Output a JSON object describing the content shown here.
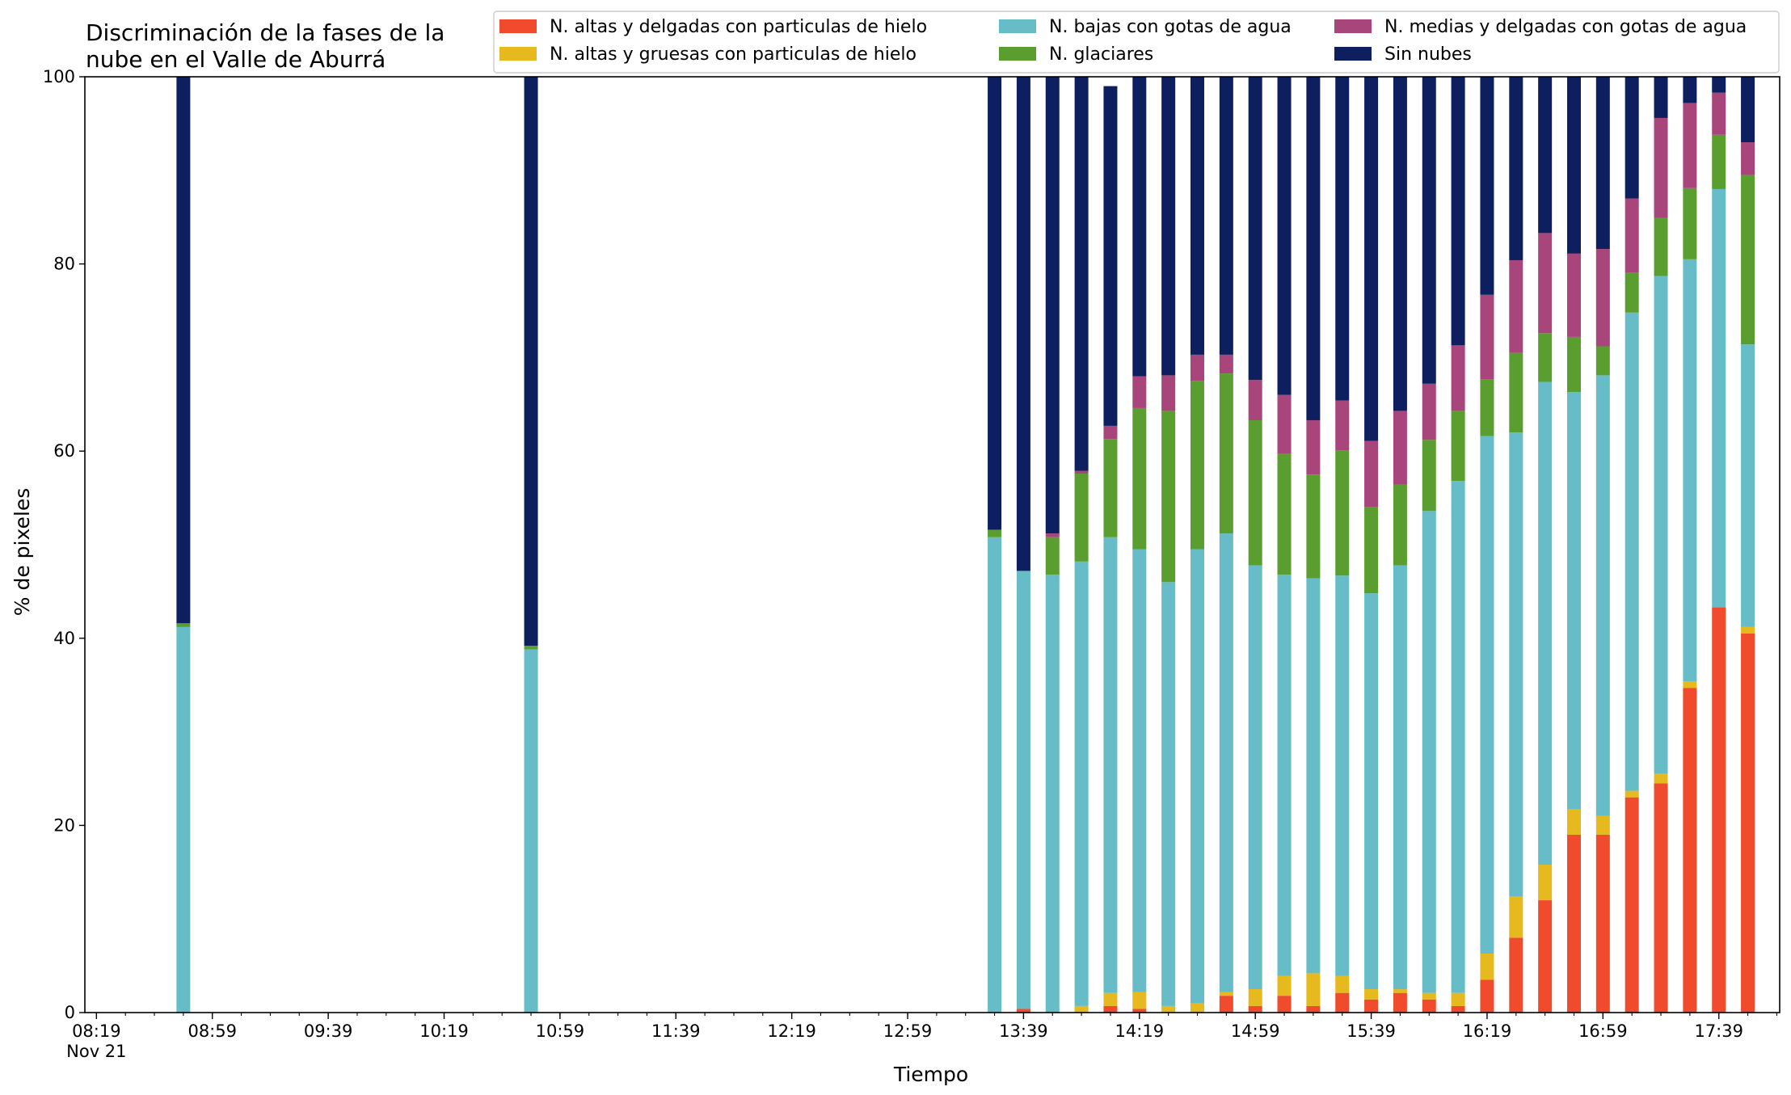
{
  "chart_data": {
    "type": "bar",
    "stacked": true,
    "title": "Discriminación de la fases de la\nnube en el Valle de Aburrá",
    "xlabel": "Tiempo",
    "ylabel": "% de pixeles",
    "ylim": [
      0,
      100
    ],
    "yticks": [
      0,
      20,
      40,
      60,
      80,
      100
    ],
    "xlim": [
      "08:15",
      "18:00"
    ],
    "xticks": [
      "08:19",
      "08:59",
      "09:39",
      "10:19",
      "10:59",
      "11:39",
      "12:19",
      "12:59",
      "13:39",
      "14:19",
      "14:59",
      "15:39",
      "16:19",
      "16:59",
      "17:39"
    ],
    "xtick_sublabel": "Nov 21",
    "minor_tick_interval_minutes": 10,
    "legend": {
      "placement": "top-right",
      "columns": 3
    },
    "categories": [
      "08:49",
      "10:49",
      "13:29",
      "13:39",
      "13:49",
      "13:59",
      "14:09",
      "14:19",
      "14:29",
      "14:39",
      "14:49",
      "14:59",
      "15:09",
      "15:19",
      "15:29",
      "15:39",
      "15:49",
      "15:59",
      "16:09",
      "16:19",
      "16:29",
      "16:39",
      "16:49",
      "16:59",
      "17:09",
      "17:19",
      "17:29",
      "17:39",
      "17:49"
    ],
    "series": [
      {
        "name": "N. altas y delgadas con particulas de hielo",
        "color": "#ef4b2c",
        "values": [
          0,
          0,
          0,
          0.4,
          0,
          0,
          0.7,
          0.4,
          0,
          0,
          1.8,
          0.7,
          1.8,
          0.7,
          2.1,
          1.4,
          2.1,
          1.4,
          0.7,
          3.5,
          8,
          12,
          19,
          19,
          23,
          24.5,
          34.7,
          43.3,
          40.5
        ]
      },
      {
        "name": "N. altas y gruesas con particulas de hielo",
        "color": "#e6b91e",
        "values": [
          0,
          0,
          0,
          0,
          0,
          0.7,
          1.4,
          1.8,
          0.7,
          1,
          0.4,
          1.8,
          2.1,
          3.5,
          1.8,
          1.1,
          0.4,
          0.7,
          1.4,
          2.8,
          4.4,
          3.8,
          2.7,
          2,
          0.7,
          1,
          0.7,
          0,
          0.7
        ]
      },
      {
        "name": "N. bajas con gotas de agua",
        "color": "#66bdc8",
        "values": [
          41.2,
          38.8,
          50.8,
          46.8,
          46.8,
          47.5,
          48.7,
          47.3,
          45.3,
          48.5,
          49,
          45.3,
          42.9,
          42.2,
          42.8,
          42.3,
          45.3,
          51.5,
          54.7,
          55.3,
          49.6,
          51.6,
          44.6,
          47.1,
          51.1,
          53.2,
          45.1,
          44.7,
          30.2
        ]
      },
      {
        "name": "N. glaciares",
        "color": "#5b9e30",
        "values": [
          0.4,
          0.4,
          0.8,
          0,
          4,
          9.4,
          10.5,
          15.1,
          18.3,
          18,
          17.1,
          15.5,
          12.9,
          11.1,
          13.4,
          9.2,
          8.6,
          7.6,
          7.5,
          6.1,
          8.5,
          5.2,
          5.9,
          3.1,
          4.3,
          6.2,
          7.6,
          5.8,
          18.1
        ]
      },
      {
        "name": "N. medias y delgadas con gotas de agua",
        "color": "#a8457a",
        "values": [
          0,
          0,
          0,
          0,
          0.4,
          0.3,
          1.4,
          3.4,
          3.8,
          2.8,
          2,
          4.3,
          6.3,
          5.8,
          5.3,
          7.1,
          7.9,
          6,
          7,
          9,
          9.9,
          10.7,
          8.9,
          10.4,
          7.9,
          10.7,
          9.1,
          4.5,
          3.5
        ]
      },
      {
        "name": "Sin nubes",
        "color": "#0d1f5f",
        "values": [
          58.4,
          60.8,
          48.4,
          52.8,
          48.8,
          42.1,
          36.3,
          32,
          31.9,
          29.7,
          29.7,
          32.4,
          34,
          36.7,
          34.6,
          38.9,
          35.7,
          32.8,
          28.7,
          23.3,
          19.6,
          16.7,
          18.9,
          18.4,
          13,
          4.4,
          2.8,
          1.7,
          7
        ]
      }
    ]
  }
}
